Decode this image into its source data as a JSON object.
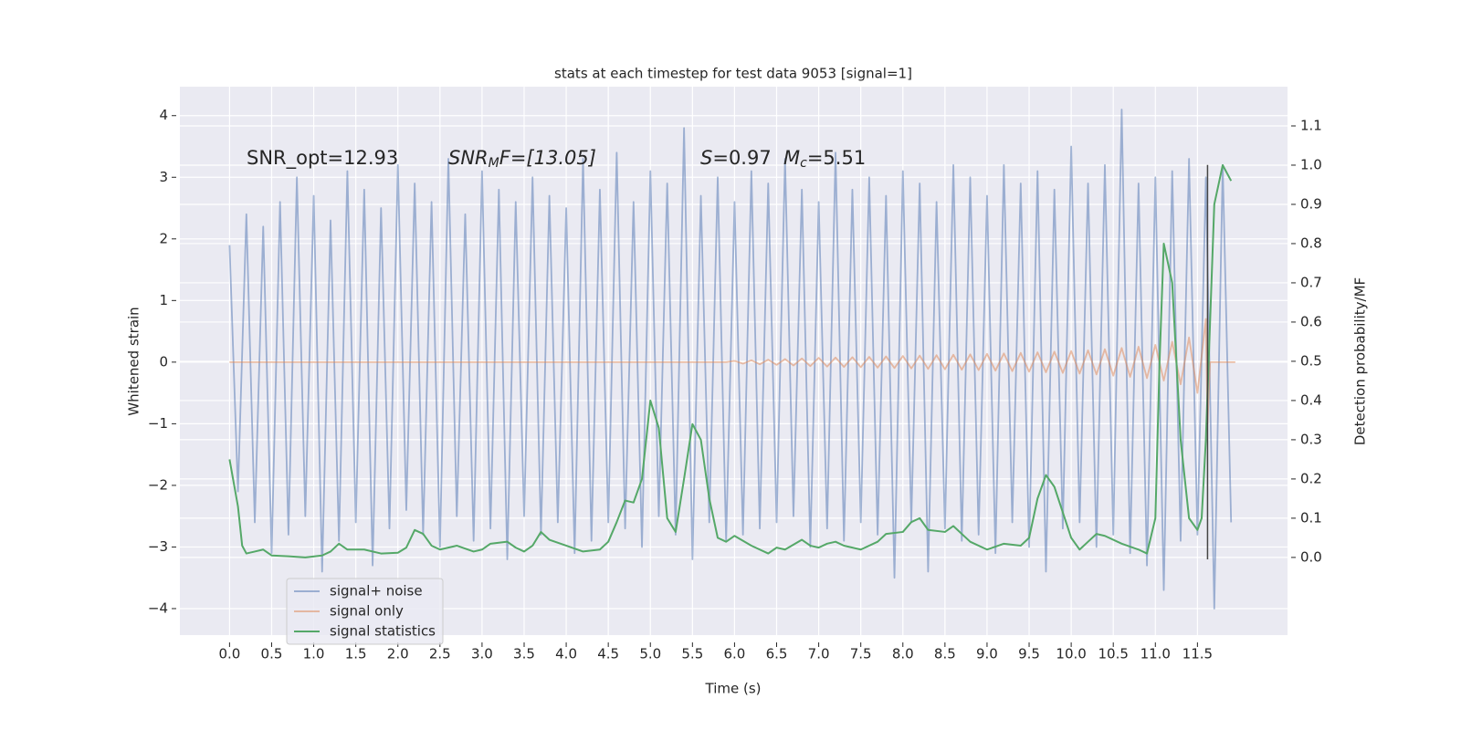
{
  "chart_data": {
    "type": "line",
    "title": "stats at each timestep for test data 9053 [signal=1]",
    "xlabel": "Time (s)",
    "ylabel": "Whitened strain",
    "y2label": "Detection probability/MF",
    "annotations": [
      [
        "SNR_opt=12.93"
      ],
      [
        "SNR",
        "M",
        "F=[13.05]"
      ],
      [
        "S",
        "=0.97",
        "M",
        "c",
        "=5.51"
      ]
    ],
    "xlim": [
      -0.59,
      12.57
    ],
    "ylim": [
      -4.43,
      4.47
    ],
    "y2lim": [
      -0.198,
      1.2
    ],
    "xticks": [
      {
        "value": 0,
        "label": "0.0"
      },
      0.5,
      {
        "value": 1,
        "label": "1.0"
      },
      1.5,
      {
        "value": 2,
        "label": "2.0"
      },
      2.5,
      {
        "value": 3,
        "label": "3.0"
      },
      3.5,
      {
        "value": 4,
        "label": "4.0"
      },
      4.5,
      {
        "value": 5,
        "label": "5.0"
      },
      5.5,
      {
        "value": 6,
        "label": "6.0"
      },
      6.5,
      {
        "value": 7,
        "label": "7.0"
      },
      7.5,
      {
        "value": 8,
        "label": "8.0"
      },
      8.5,
      {
        "value": 9,
        "label": "9.0"
      },
      9.5,
      {
        "value": 10,
        "label": "10.0"
      },
      10.5,
      {
        "value": 11,
        "label": "11.0"
      },
      11.5
    ],
    "yticks": [
      {
        "value": -4,
        "label": "−4"
      },
      {
        "value": -3,
        "label": "−3"
      },
      {
        "value": -2,
        "label": "−2"
      },
      {
        "value": -1,
        "label": "−1"
      },
      0,
      1,
      2,
      3,
      4
    ],
    "y2ticks": [
      {
        "value": 0,
        "label": "0.0"
      },
      0.1,
      0.2,
      0.3,
      0.4,
      0.5,
      0.6,
      0.7,
      0.8,
      0.9,
      {
        "value": 1,
        "label": "1.0"
      },
      1.1
    ],
    "grid": true,
    "legend": "lower left",
    "vline": {
      "x": 11.62,
      "ymin": -3.2,
      "ymax": 3.2,
      "color": "#444444"
    },
    "series": [
      {
        "name": "signal+ noise",
        "color": "#4c72b0",
        "opacity": 0.5,
        "x": [
          0,
          0.1,
          0.2,
          0.3,
          0.4,
          0.5,
          0.6,
          0.7,
          0.8,
          0.9,
          1,
          1.1,
          1.2,
          1.3,
          1.4,
          1.5,
          1.6,
          1.7,
          1.8,
          1.9,
          2,
          2.1,
          2.2,
          2.3,
          2.4,
          2.5,
          2.6,
          2.7,
          2.8,
          2.9,
          3,
          3.1,
          3.2,
          3.3,
          3.4,
          3.5,
          3.6,
          3.7,
          3.8,
          3.9,
          4,
          4.1,
          4.2,
          4.3,
          4.4,
          4.5,
          4.6,
          4.7,
          4.8,
          4.9,
          5,
          5.1,
          5.2,
          5.3,
          5.4,
          5.5,
          5.6,
          5.7,
          5.8,
          5.9,
          6,
          6.1,
          6.2,
          6.3,
          6.4,
          6.5,
          6.6,
          6.7,
          6.8,
          6.9,
          7,
          7.1,
          7.2,
          7.3,
          7.4,
          7.5,
          7.6,
          7.7,
          7.8,
          7.9,
          8,
          8.1,
          8.2,
          8.3,
          8.4,
          8.5,
          8.6,
          8.7,
          8.8,
          8.9,
          9,
          9.1,
          9.2,
          9.3,
          9.4,
          9.5,
          9.6,
          9.7,
          9.8,
          9.9,
          10,
          10.1,
          10.2,
          10.3,
          10.4,
          10.5,
          10.6,
          10.7,
          10.8,
          10.9,
          11,
          11.1,
          11.2,
          11.3,
          11.4,
          11.5,
          11.6,
          11.7,
          11.8,
          11.9
        ],
        "values": [
          1.9,
          -2.1,
          2.4,
          -2.6,
          2.2,
          -3.1,
          2.6,
          -2.8,
          3.0,
          -2.5,
          2.7,
          -3.4,
          2.3,
          -2.9,
          3.1,
          -2.6,
          2.8,
          -3.3,
          2.5,
          -2.7,
          3.2,
          -2.4,
          2.9,
          -2.8,
          2.6,
          -3.0,
          3.3,
          -2.5,
          2.4,
          -2.9,
          3.1,
          -2.7,
          2.8,
          -3.2,
          2.6,
          -2.5,
          3.0,
          -2.8,
          2.7,
          -2.6,
          2.5,
          -3.1,
          3.3,
          -2.9,
          2.8,
          -2.6,
          3.4,
          -2.7,
          2.6,
          -3.0,
          3.1,
          -2.5,
          2.9,
          -2.8,
          3.8,
          -3.2,
          2.7,
          -2.6,
          3.0,
          -2.9,
          2.6,
          -2.8,
          3.1,
          -2.7,
          2.9,
          -2.6,
          3.3,
          -2.5,
          2.8,
          -3.0,
          2.6,
          -2.7,
          3.4,
          -2.9,
          2.8,
          -2.6,
          3.0,
          -2.8,
          2.7,
          -3.5,
          3.1,
          -2.6,
          2.9,
          -3.4,
          2.6,
          -2.7,
          3.2,
          -2.9,
          3.0,
          -2.8,
          2.7,
          -3.1,
          3.2,
          -2.6,
          2.9,
          -3.0,
          3.1,
          -3.4,
          2.8,
          -2.7,
          3.5,
          -2.6,
          2.9,
          -3.0,
          3.2,
          -2.8,
          4.1,
          -3.1,
          2.9,
          -3.3,
          3.0,
          -3.7,
          3.1,
          -2.9,
          3.3,
          -2.8,
          3.0,
          -4.0,
          3.2,
          -2.6
        ]
      },
      {
        "name": "signal only",
        "color": "#dd8452",
        "opacity": 0.5,
        "x": [
          0,
          5.9,
          6,
          6.1,
          6.2,
          6.3,
          6.4,
          6.5,
          6.6,
          6.7,
          6.8,
          6.9,
          7,
          7.1,
          7.2,
          7.3,
          7.4,
          7.5,
          7.6,
          7.7,
          7.8,
          7.9,
          8,
          8.1,
          8.2,
          8.3,
          8.4,
          8.5,
          8.6,
          8.7,
          8.8,
          8.9,
          9,
          9.1,
          9.2,
          9.3,
          9.4,
          9.5,
          9.6,
          9.7,
          9.8,
          9.9,
          10,
          10.1,
          10.2,
          10.3,
          10.4,
          10.5,
          10.6,
          10.7,
          10.8,
          10.9,
          11,
          11.1,
          11.2,
          11.3,
          11.4,
          11.5,
          11.6,
          11.62,
          11.65,
          11.95
        ],
        "values": [
          0,
          0,
          0.02,
          -0.025,
          0.03,
          -0.035,
          0.04,
          -0.045,
          0.05,
          -0.055,
          0.06,
          -0.065,
          0.07,
          -0.072,
          0.075,
          -0.078,
          0.08,
          -0.083,
          0.086,
          -0.09,
          0.093,
          -0.096,
          0.1,
          -0.103,
          0.106,
          -0.11,
          0.113,
          -0.116,
          0.12,
          -0.123,
          0.126,
          -0.13,
          0.134,
          -0.138,
          0.142,
          -0.146,
          0.15,
          -0.155,
          0.16,
          -0.165,
          0.17,
          -0.175,
          0.18,
          -0.186,
          0.192,
          -0.2,
          0.21,
          -0.22,
          0.23,
          -0.24,
          0.25,
          -0.26,
          0.28,
          -0.3,
          0.33,
          -0.36,
          0.4,
          -0.5,
          0.7,
          -1.0,
          0,
          0
        ]
      },
      {
        "name": "signal statistics",
        "color": "#55a868",
        "opacity": 1,
        "axis": "y2",
        "x": [
          0,
          0.1,
          0.15,
          0.2,
          0.3,
          0.4,
          0.5,
          0.7,
          0.9,
          1.1,
          1.2,
          1.3,
          1.4,
          1.6,
          1.8,
          2.0,
          2.1,
          2.2,
          2.3,
          2.4,
          2.5,
          2.7,
          2.9,
          3.0,
          3.1,
          3.3,
          3.4,
          3.5,
          3.6,
          3.7,
          3.8,
          4.0,
          4.2,
          4.4,
          4.5,
          4.6,
          4.7,
          4.8,
          4.9,
          5.0,
          5.1,
          5.2,
          5.3,
          5.4,
          5.5,
          5.6,
          5.7,
          5.8,
          5.9,
          6.0,
          6.2,
          6.4,
          6.5,
          6.6,
          6.8,
          6.9,
          7.0,
          7.1,
          7.2,
          7.3,
          7.5,
          7.7,
          7.8,
          8.0,
          8.1,
          8.2,
          8.3,
          8.5,
          8.6,
          8.8,
          9.0,
          9.2,
          9.4,
          9.5,
          9.6,
          9.7,
          9.8,
          10.0,
          10.1,
          10.2,
          10.3,
          10.4,
          10.6,
          10.8,
          10.9,
          11.0,
          11.05,
          11.1,
          11.2,
          11.3,
          11.4,
          11.5,
          11.55,
          11.6,
          11.7,
          11.8,
          11.9
        ],
        "values": [
          0.25,
          0.13,
          0.03,
          0.01,
          0.015,
          0.02,
          0.005,
          0.003,
          0.0,
          0.005,
          0.015,
          0.035,
          0.02,
          0.02,
          0.01,
          0.012,
          0.025,
          0.07,
          0.06,
          0.03,
          0.02,
          0.03,
          0.015,
          0.02,
          0.035,
          0.04,
          0.025,
          0.015,
          0.03,
          0.065,
          0.045,
          0.03,
          0.015,
          0.02,
          0.04,
          0.09,
          0.145,
          0.14,
          0.2,
          0.4,
          0.33,
          0.1,
          0.065,
          0.2,
          0.34,
          0.3,
          0.15,
          0.05,
          0.04,
          0.055,
          0.03,
          0.01,
          0.025,
          0.02,
          0.045,
          0.03,
          0.025,
          0.035,
          0.04,
          0.03,
          0.02,
          0.04,
          0.06,
          0.065,
          0.09,
          0.1,
          0.07,
          0.065,
          0.08,
          0.04,
          0.02,
          0.035,
          0.03,
          0.05,
          0.15,
          0.21,
          0.18,
          0.05,
          0.02,
          0.04,
          0.06,
          0.055,
          0.035,
          0.02,
          0.01,
          0.1,
          0.5,
          0.8,
          0.7,
          0.3,
          0.1,
          0.07,
          0.1,
          0.3,
          0.9,
          1.0,
          0.96
        ]
      }
    ]
  }
}
